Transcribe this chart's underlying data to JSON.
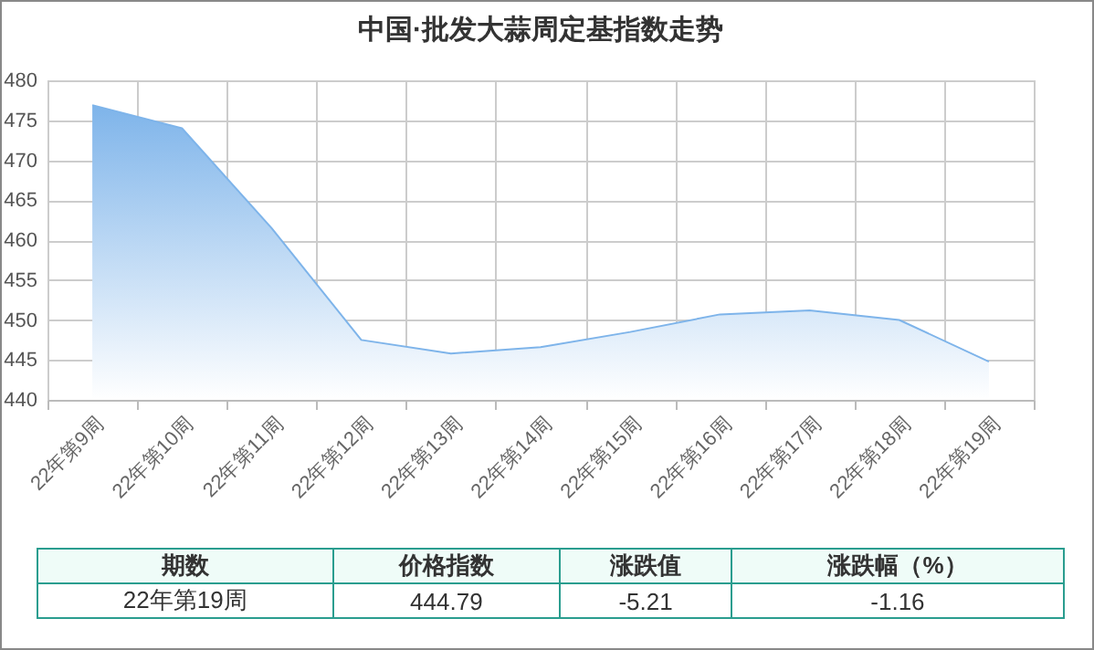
{
  "chart_data": {
    "type": "area",
    "title": "中国·批发大蒜周定基指数走势",
    "categories": [
      "22年第9周",
      "22年第10周",
      "22年第11周",
      "22年第12周",
      "22年第13周",
      "22年第14周",
      "22年第15周",
      "22年第16周",
      "22年第17周",
      "22年第18周",
      "22年第19周"
    ],
    "values": [
      476.9,
      474.0,
      461.5,
      447.5,
      445.8,
      446.6,
      448.5,
      450.7,
      451.2,
      450.0,
      444.79
    ],
    "color": "#7eb4ea",
    "ylim": [
      440,
      480
    ],
    "yticks": [
      440,
      445,
      450,
      455,
      460,
      465,
      470,
      475,
      480
    ],
    "grid": true,
    "marker": "none",
    "annotations": [
      "期数",
      "价格指数",
      "涨跌值",
      "涨跌幅（%）",
      "22年第19周",
      "444.79",
      "-5.21",
      "-1.16"
    ]
  }
}
